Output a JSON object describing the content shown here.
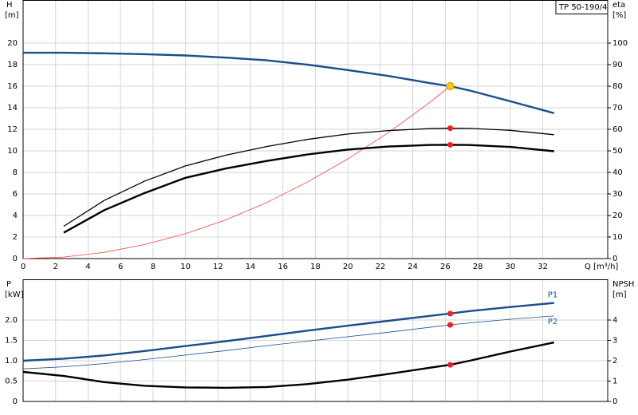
{
  "chart_data": [
    {
      "type": "line",
      "title": "TP 50-190/4",
      "y_label": "H",
      "y_unit": "[m]",
      "y2_label": "eta",
      "y2_unit": "[%]",
      "x_label": "Q [m³/h]",
      "x": [
        0,
        2.5,
        5,
        7.5,
        10,
        12.5,
        15,
        17.5,
        20,
        22.5,
        25,
        26.3,
        27.5,
        30,
        32.7
      ],
      "xlim": [
        0,
        36
      ],
      "xticks": [
        0,
        2,
        4,
        6,
        8,
        10,
        12,
        14,
        16,
        18,
        20,
        22,
        24,
        26,
        28,
        30,
        32
      ],
      "ylim": [
        0,
        24
      ],
      "yticks": [
        0,
        2,
        4,
        6,
        8,
        10,
        12,
        14,
        16,
        18,
        20
      ],
      "y2lim": [
        0,
        120
      ],
      "y2ticks": [
        0,
        10,
        20,
        30,
        40,
        50,
        60,
        70,
        80,
        90,
        100
      ],
      "grid": true,
      "series": [
        {
          "color": "#1a4f8b",
          "style": "thick",
          "values": [
            19.1,
            19.1,
            19.05,
            18.97,
            18.85,
            18.65,
            18.4,
            18.0,
            17.5,
            16.95,
            16.3,
            16.0,
            15.6,
            14.6,
            13.5
          ]
        },
        {
          "color": "#ff3b3b",
          "style": "thin",
          "values": [
            0,
            0.14,
            0.58,
            1.3,
            2.31,
            3.6,
            5.2,
            7.1,
            9.25,
            11.7,
            14.45,
            16.0,
            null,
            null,
            null
          ]
        },
        {
          "color": "#000000",
          "style": "medium",
          "axis": "y2",
          "values": [
            null,
            15,
            27,
            36,
            43,
            48,
            52,
            55.3,
            57.8,
            59.4,
            60.3,
            60.5,
            60.4,
            59.5,
            57.5
          ]
        },
        {
          "color": "#000000",
          "style": "thick",
          "axis": "y2",
          "values": [
            null,
            12,
            22.5,
            30.5,
            37.5,
            41.8,
            45.3,
            48.3,
            50.6,
            52,
            52.7,
            52.8,
            52.7,
            51.8,
            49.8
          ]
        }
      ],
      "points": [
        {
          "x": 26.3,
          "y": 16.0,
          "color": "#ffcc00"
        },
        {
          "x": 26.3,
          "y": 60.5,
          "axis": "y2",
          "color": "#ff1a1a"
        },
        {
          "x": 26.3,
          "y": 52.8,
          "axis": "y2",
          "color": "#ff1a1a"
        }
      ]
    },
    {
      "type": "line",
      "y_label": "P",
      "y_unit": "[kW]",
      "y2_label": "NPSH",
      "y2_unit": "[m]",
      "x": [
        0,
        2.5,
        5,
        7.5,
        10,
        12.5,
        15,
        17.5,
        20,
        22.5,
        25,
        26.3,
        27.5,
        30,
        32.7
      ],
      "xlim": [
        0,
        36
      ],
      "xticks": [
        0,
        2,
        4,
        6,
        8,
        10,
        12,
        14,
        16,
        18,
        20,
        22,
        24,
        26,
        28,
        30,
        32
      ],
      "ylim": [
        0,
        3
      ],
      "yticks": [
        0,
        0.5,
        {
          "value": 1,
          "label": "1.0"
        },
        1.5,
        {
          "value": 2,
          "label": "2.0"
        }
      ],
      "y2lim": [
        0,
        6
      ],
      "y2ticks": [
        0,
        1,
        2,
        3,
        4
      ],
      "grid": true,
      "series": [
        {
          "name": "P1",
          "color": "#1a4f8b",
          "style": "thick",
          "values": [
            1.0,
            1.05,
            1.13,
            1.24,
            1.36,
            1.48,
            1.61,
            1.74,
            1.86,
            1.98,
            2.1,
            2.16,
            2.22,
            2.32,
            2.42
          ]
        },
        {
          "name": "P2",
          "color": "#1a4f8b",
          "style": "thin",
          "values": [
            0.8,
            0.85,
            0.93,
            1.03,
            1.14,
            1.25,
            1.37,
            1.48,
            1.59,
            1.7,
            1.82,
            1.88,
            1.93,
            2.02,
            2.1
          ]
        },
        {
          "color": "#000000",
          "style": "thick",
          "axis": "y2",
          "values": [
            1.45,
            1.25,
            0.95,
            0.77,
            0.69,
            0.67,
            0.71,
            0.85,
            1.07,
            1.35,
            1.65,
            1.8,
            2.0,
            2.45,
            2.9
          ]
        }
      ],
      "points": [
        {
          "x": 26.3,
          "y": 2.16,
          "color": "#ff1a1a"
        },
        {
          "x": 26.3,
          "y": 1.88,
          "color": "#ff1a1a"
        },
        {
          "x": 26.3,
          "y": 1.8,
          "axis": "y2",
          "color": "#ff1a1a"
        }
      ]
    }
  ]
}
